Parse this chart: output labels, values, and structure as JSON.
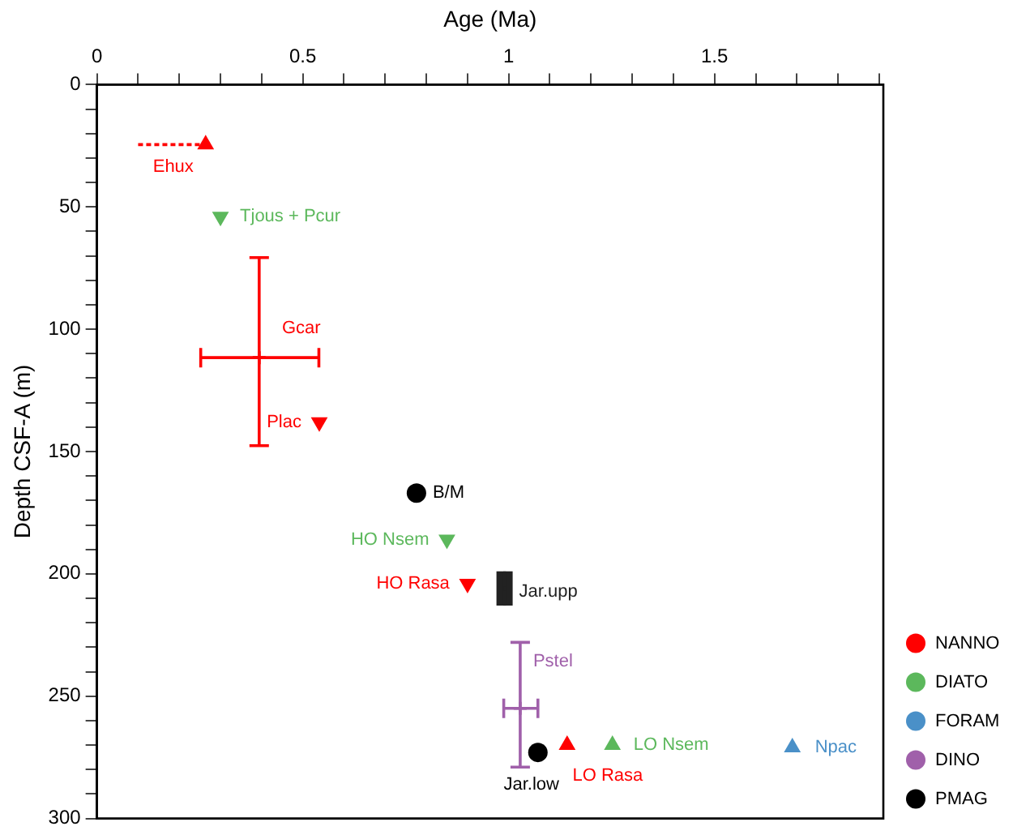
{
  "chart_data": {
    "type": "scatter",
    "xlabel": "Age (Ma)",
    "ylabel": "Depth CSF-A (m)",
    "xlim": [
      0,
      1.91
    ],
    "ylim": [
      300,
      0
    ],
    "xticks": [
      0,
      {
        "value": 0.1,
        "label": null
      },
      {
        "value": 0.2,
        "label": null
      },
      {
        "value": 0.3,
        "label": null
      },
      {
        "value": 0.4,
        "label": null
      },
      0.5,
      {
        "value": 0.6,
        "label": null
      },
      {
        "value": 0.7,
        "label": null
      },
      {
        "value": 0.8,
        "label": null
      },
      {
        "value": 0.9,
        "label": null
      },
      1,
      {
        "value": 1.1,
        "label": null
      },
      {
        "value": 1.2,
        "label": null
      },
      {
        "value": 1.3,
        "label": null
      },
      {
        "value": 1.4,
        "label": null
      },
      1.5,
      {
        "value": 1.6,
        "label": null
      },
      {
        "value": 1.7,
        "label": null
      },
      {
        "value": 1.8,
        "label": null
      },
      {
        "value": 1.9,
        "label": null
      }
    ],
    "yticks": [
      0,
      {
        "value": 10,
        "label": null
      },
      {
        "value": 20,
        "label": null
      },
      {
        "value": 30,
        "label": null
      },
      {
        "value": 40,
        "label": null
      },
      50,
      {
        "value": 60,
        "label": null
      },
      {
        "value": 70,
        "label": null
      },
      {
        "value": 80,
        "label": null
      },
      {
        "value": 90,
        "label": null
      },
      100,
      {
        "value": 110,
        "label": null
      },
      {
        "value": 120,
        "label": null
      },
      {
        "value": 130,
        "label": null
      },
      {
        "value": 140,
        "label": null
      },
      150,
      {
        "value": 160,
        "label": null
      },
      {
        "value": 170,
        "label": null
      },
      {
        "value": 180,
        "label": null
      },
      {
        "value": 190,
        "label": null
      },
      200,
      {
        "value": 210,
        "label": null
      },
      {
        "value": 220,
        "label": null
      },
      {
        "value": 230,
        "label": null
      },
      {
        "value": 240,
        "label": null
      },
      250,
      {
        "value": 260,
        "label": null
      },
      {
        "value": 270,
        "label": null
      },
      {
        "value": 280,
        "label": null
      },
      {
        "value": 290,
        "label": null
      },
      300
    ],
    "grid": false,
    "legend": "right",
    "series": [
      {
        "name": "NANNO",
        "color": "#ff0000",
        "marker": "triangle",
        "line_style": "dashed",
        "x": [
          0.264,
          1.142
        ],
        "values": [
          24.5,
          270
        ],
        "xerrors": [
          [
            0.1,
            0.264
          ],
          null
        ],
        "value_labels": [
          "Ehux",
          "LO Rasa"
        ]
      },
      {
        "color": "#ff0000",
        "marker": "triangle-down",
        "x": [
          0.54,
          0.9
        ],
        "values": [
          138,
          204
        ],
        "value_labels": [
          "Plac",
          "HO Rasa"
        ]
      },
      {
        "color": "#ff0000",
        "marker": "cross",
        "x": [
          0.394
        ],
        "values": [
          111.6
        ],
        "errors": [
          [
            70.7,
            147.6
          ]
        ],
        "xerrors": [
          [
            0.252,
            0.539
          ]
        ],
        "value_labels": [
          "Gcar"
        ]
      },
      {
        "name": "DIATO",
        "color": "#5cb85c",
        "marker": "triangle-down",
        "x": [
          0.3,
          0.85
        ],
        "values": [
          54,
          186
        ],
        "value_labels": [
          "Tjous + Pcur",
          "HO Nsem"
        ]
      },
      {
        "color": "#5cb85c",
        "marker": "triangle",
        "x": [
          1.252
        ],
        "values": [
          270
        ],
        "value_labels": [
          "LO Nsem"
        ]
      },
      {
        "name": "FORAM",
        "color": "#4a90c8",
        "marker": "triangle",
        "x": [
          1.689
        ],
        "values": [
          271
        ],
        "value_labels": [
          "Npac"
        ]
      },
      {
        "name": "DINO",
        "color": "#a060aa",
        "marker": "cross",
        "x": [
          1.028
        ],
        "values": [
          255
        ],
        "errors": [
          [
            228,
            279
          ]
        ],
        "xerrors": [
          [
            0.988,
            1.071
          ]
        ],
        "value_labels": [
          "Pstel"
        ]
      },
      {
        "name": "PMAG",
        "color": "#000000",
        "marker": "circle",
        "x": [
          0.776,
          1.071
        ],
        "values": [
          167,
          273
        ],
        "value_labels": [
          "B/M",
          "Jar.low"
        ]
      },
      {
        "color": "#222222",
        "marker": "square",
        "x": [
          0.99
        ],
        "values": [
          206
        ],
        "errors": [
          [
            199,
            213
          ]
        ],
        "value_labels": [
          "Jar.upp"
        ]
      }
    ]
  }
}
